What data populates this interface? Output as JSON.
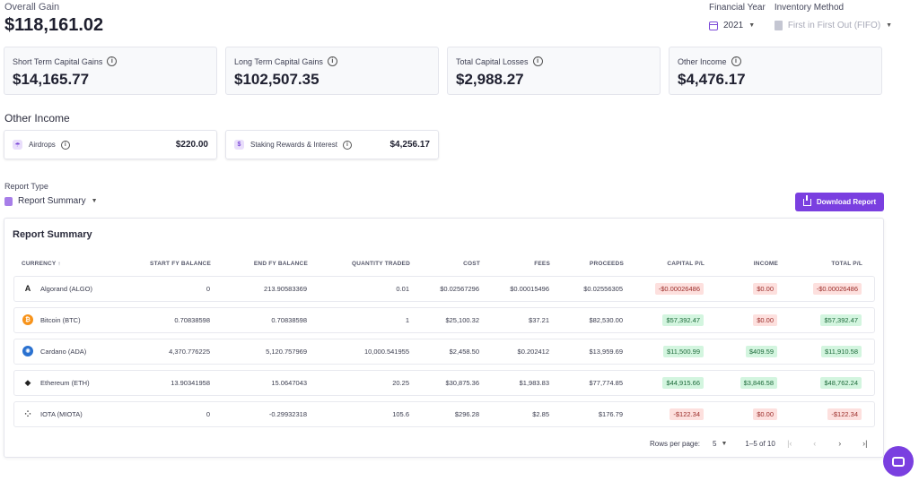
{
  "overall": {
    "label": "Overall Gain",
    "value": "$118,161.02"
  },
  "filters": {
    "financial_year": {
      "label": "Financial Year",
      "value": "2021",
      "icon": "calendar-icon"
    },
    "inventory_method": {
      "label": "Inventory Method",
      "value": "First in First Out (FIFO)",
      "icon": "document-icon"
    }
  },
  "cards": [
    {
      "label": "Short Term Capital Gains",
      "value": "$14,165.77"
    },
    {
      "label": "Long Term Capital Gains",
      "value": "$102,507.35"
    },
    {
      "label": "Total Capital Losses",
      "value": "$2,988.27"
    },
    {
      "label": "Other Income",
      "value": "$4,476.17"
    }
  ],
  "other_income": {
    "title": "Other Income",
    "items": [
      {
        "label": "Airdrops",
        "value": "$220.00"
      },
      {
        "label": "Staking Rewards & Interest",
        "value": "$4,256.17"
      }
    ]
  },
  "report_type": {
    "label": "Report Type",
    "value": "Report Summary"
  },
  "download_label": "Download Report",
  "summary": {
    "title": "Report Summary",
    "headers": [
      "CURRENCY",
      "START FY BALANCE",
      "END FY BALANCE",
      "QUANTITY TRADED",
      "COST",
      "FEES",
      "PROCEEDS",
      "CAPITAL P/L",
      "INCOME",
      "TOTAL P/L"
    ],
    "rows": [
      {
        "currency": "Algorand (ALGO)",
        "icon_color": "#ffffff",
        "glyph": "A",
        "start": "0",
        "end": "213.90583369",
        "qty": "0.01",
        "cost": "$0.02567296",
        "fees": "$0.00015496",
        "proceeds": "$0.02556305",
        "cap": "-$0.00026486",
        "cap_type": "neg",
        "income": "$0.00",
        "income_type": "neg",
        "total": "-$0.00026486",
        "total_type": "neg"
      },
      {
        "currency": "Bitcoin (BTC)",
        "icon_color": "#f7931a",
        "glyph": "₿",
        "start": "0.70838598",
        "end": "0.70838598",
        "qty": "1",
        "cost": "$25,100.32",
        "fees": "$37.21",
        "proceeds": "$82,530.00",
        "cap": "$57,392.47",
        "cap_type": "pos",
        "income": "$0.00",
        "income_type": "neg",
        "total": "$57,392.47",
        "total_type": "pos"
      },
      {
        "currency": "Cardano (ADA)",
        "icon_color": "#2a71d0",
        "glyph": "✺",
        "start": "4,370.776225",
        "end": "5,120.757969",
        "qty": "10,000.541955",
        "cost": "$2,458.50",
        "fees": "$0.202412",
        "proceeds": "$13,959.69",
        "cap": "$11,500.99",
        "cap_type": "pos",
        "income": "$409.59",
        "income_type": "pos",
        "total": "$11,910.58",
        "total_type": "pos"
      },
      {
        "currency": "Ethereum (ETH)",
        "icon_color": "#ffffff",
        "glyph": "◆",
        "start": "13.90341958",
        "end": "15.0647043",
        "qty": "20.25",
        "cost": "$30,875.36",
        "fees": "$1,983.83",
        "proceeds": "$77,774.85",
        "cap": "$44,915.66",
        "cap_type": "pos",
        "income": "$3,846.58",
        "income_type": "pos",
        "total": "$48,762.24",
        "total_type": "pos"
      },
      {
        "currency": "IOTA (MIOTA)",
        "icon_color": "#ffffff",
        "glyph": "⁘",
        "start": "0",
        "end": "-0.29932318",
        "qty": "105.6",
        "cost": "$296.28",
        "fees": "$2.85",
        "proceeds": "$176.79",
        "cap": "-$122.34",
        "cap_type": "neg",
        "income": "$0.00",
        "income_type": "neg",
        "total": "-$122.34",
        "total_type": "neg"
      }
    ]
  },
  "pager": {
    "rows_label": "Rows per page:",
    "rows_value": "5",
    "range": "1–5 of 10"
  }
}
